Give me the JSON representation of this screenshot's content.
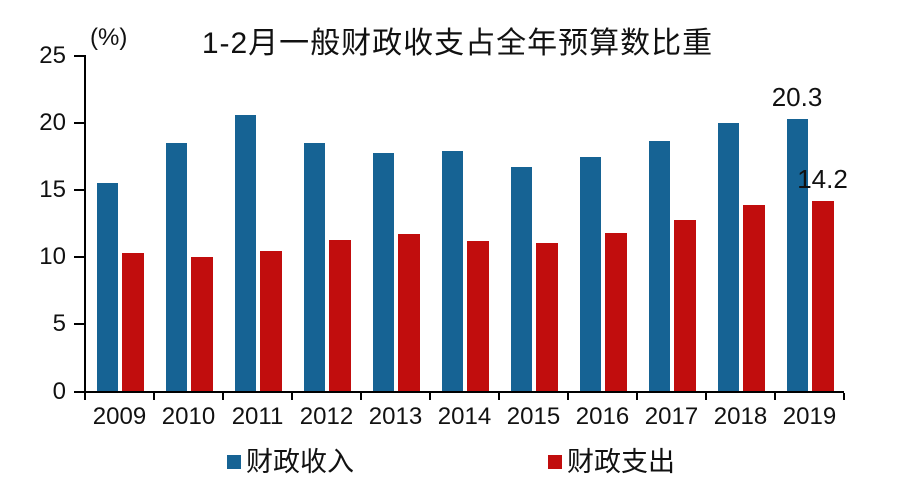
{
  "chart_data": {
    "type": "bar",
    "title": "1-2月一般财政收支占全年预算数比重",
    "unit_label": "(%)",
    "categories": [
      "2009",
      "2010",
      "2011",
      "2012",
      "2013",
      "2014",
      "2015",
      "2016",
      "2017",
      "2018",
      "2019"
    ],
    "series": [
      {
        "name": "财政收入",
        "color": "#166394",
        "values": [
          15.5,
          18.5,
          20.6,
          18.5,
          17.8,
          17.9,
          16.7,
          17.5,
          18.7,
          20.0,
          20.3
        ]
      },
      {
        "name": "财政支出",
        "color": "#C10D0D",
        "values": [
          10.3,
          10.0,
          10.5,
          11.3,
          11.7,
          11.2,
          11.1,
          11.8,
          12.8,
          13.9,
          14.2
        ]
      }
    ],
    "yticks": [
      0,
      5,
      10,
      15,
      20,
      25
    ],
    "ylim": [
      0,
      25
    ],
    "grid": false,
    "legend_position": "bottom",
    "annotations": [
      {
        "text": "20.3",
        "series": 0,
        "index": 10
      },
      {
        "text": "14.2",
        "series": 1,
        "index": 10
      }
    ]
  }
}
